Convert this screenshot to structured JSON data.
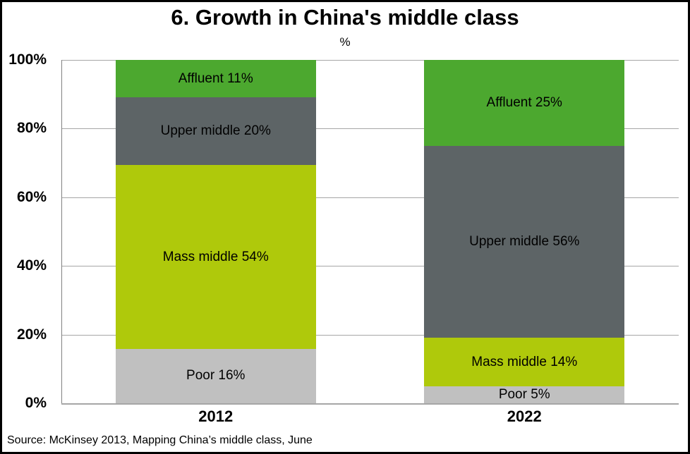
{
  "title": "6. Growth in China's middle class",
  "subtitle": "%",
  "source": "Source: McKinsey 2013, Mapping China’s middle class, June",
  "colors": {
    "affluent": "#4CA82F",
    "upper_middle": "#5D6466",
    "mass_middle": "#AFC90B",
    "poor": "#C0C0C0",
    "gridline": "#A6A6A6",
    "axis_line": "#808080",
    "frame_border": "#000000",
    "background": "#FFFFFF",
    "text": "#000000"
  },
  "y_axis": {
    "ticks": [
      "100%",
      "80%",
      "60%",
      "40%",
      "20%",
      "0%"
    ]
  },
  "chart_data": {
    "type": "bar",
    "stacked": true,
    "title": "6. Growth in China's middle class",
    "xlabel": "",
    "ylabel": "%",
    "ylim": [
      0,
      100
    ],
    "grid": true,
    "legend": "none (labels inside segments)",
    "categories": [
      "2012",
      "2022"
    ],
    "series": [
      {
        "name": "Affluent",
        "color_key": "affluent",
        "values": [
          11,
          25
        ],
        "labels": [
          "Affluent 11%",
          "Affluent 25%"
        ]
      },
      {
        "name": "Upper middle",
        "color_key": "upper_middle",
        "values": [
          20,
          56
        ],
        "labels": [
          "Upper middle 20%",
          "Upper middle 56%"
        ]
      },
      {
        "name": "Mass middle",
        "color_key": "mass_middle",
        "values": [
          54,
          14
        ],
        "labels": [
          "Mass middle 54%",
          "Mass middle 14%"
        ]
      },
      {
        "name": "Poor",
        "color_key": "poor",
        "values": [
          16,
          5
        ],
        "labels": [
          "Poor 16%",
          "Poor 5%"
        ]
      }
    ]
  }
}
